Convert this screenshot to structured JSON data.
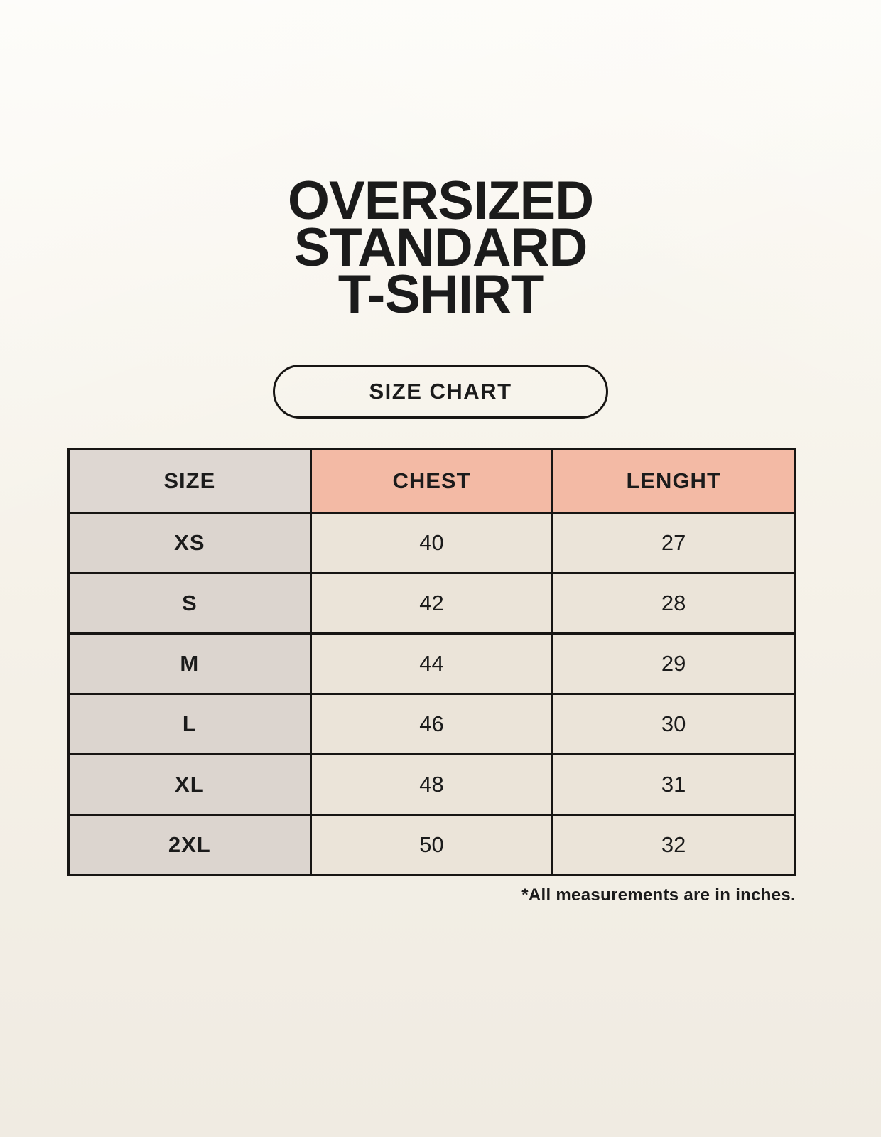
{
  "header": {
    "title_lines": [
      "OVERSIZED",
      "STANDARD",
      "T-SHIRT"
    ],
    "size_chart_label": "SIZE CHART"
  },
  "table": {
    "columns": [
      "SIZE",
      "CHEST",
      "LENGHT"
    ],
    "rows": [
      [
        "XS",
        "40",
        "27"
      ],
      [
        "S",
        "42",
        "28"
      ],
      [
        "M",
        "44",
        "29"
      ],
      [
        "L",
        "46",
        "30"
      ],
      [
        "XL",
        "48",
        "31"
      ],
      [
        "2XL",
        "50",
        "32"
      ]
    ]
  },
  "footnote": "*All measurements are in inches.",
  "colors": {
    "page_bg_top": "#fbf9f3",
    "page_bg_bottom": "#f0ebe2",
    "header_size_bg": "#ded7d2",
    "header_measure_bg": "#f3baa5",
    "row_label_bg": "#dcd5cf",
    "row_value_bg": "#ebe4d9",
    "border": "#171513",
    "text": "#1b1b1b"
  },
  "chart_data": {
    "type": "table",
    "title": "OVERSIZED STANDARD T-SHIRT",
    "subtitle": "SIZE CHART",
    "columns": [
      "SIZE",
      "CHEST",
      "LENGHT"
    ],
    "rows": [
      [
        "XS",
        "40",
        "27"
      ],
      [
        "S",
        "42",
        "28"
      ],
      [
        "M",
        "44",
        "29"
      ],
      [
        "L",
        "46",
        "30"
      ],
      [
        "XL",
        "48",
        "31"
      ],
      [
        "2XL",
        "50",
        "32"
      ]
    ],
    "units": "inches",
    "footnote": "*All measurements are in inches.",
    "layout": "three equal columns; SIZE column gray, measurement header cells salmon, value cells cream; black 3px grid borders"
  }
}
